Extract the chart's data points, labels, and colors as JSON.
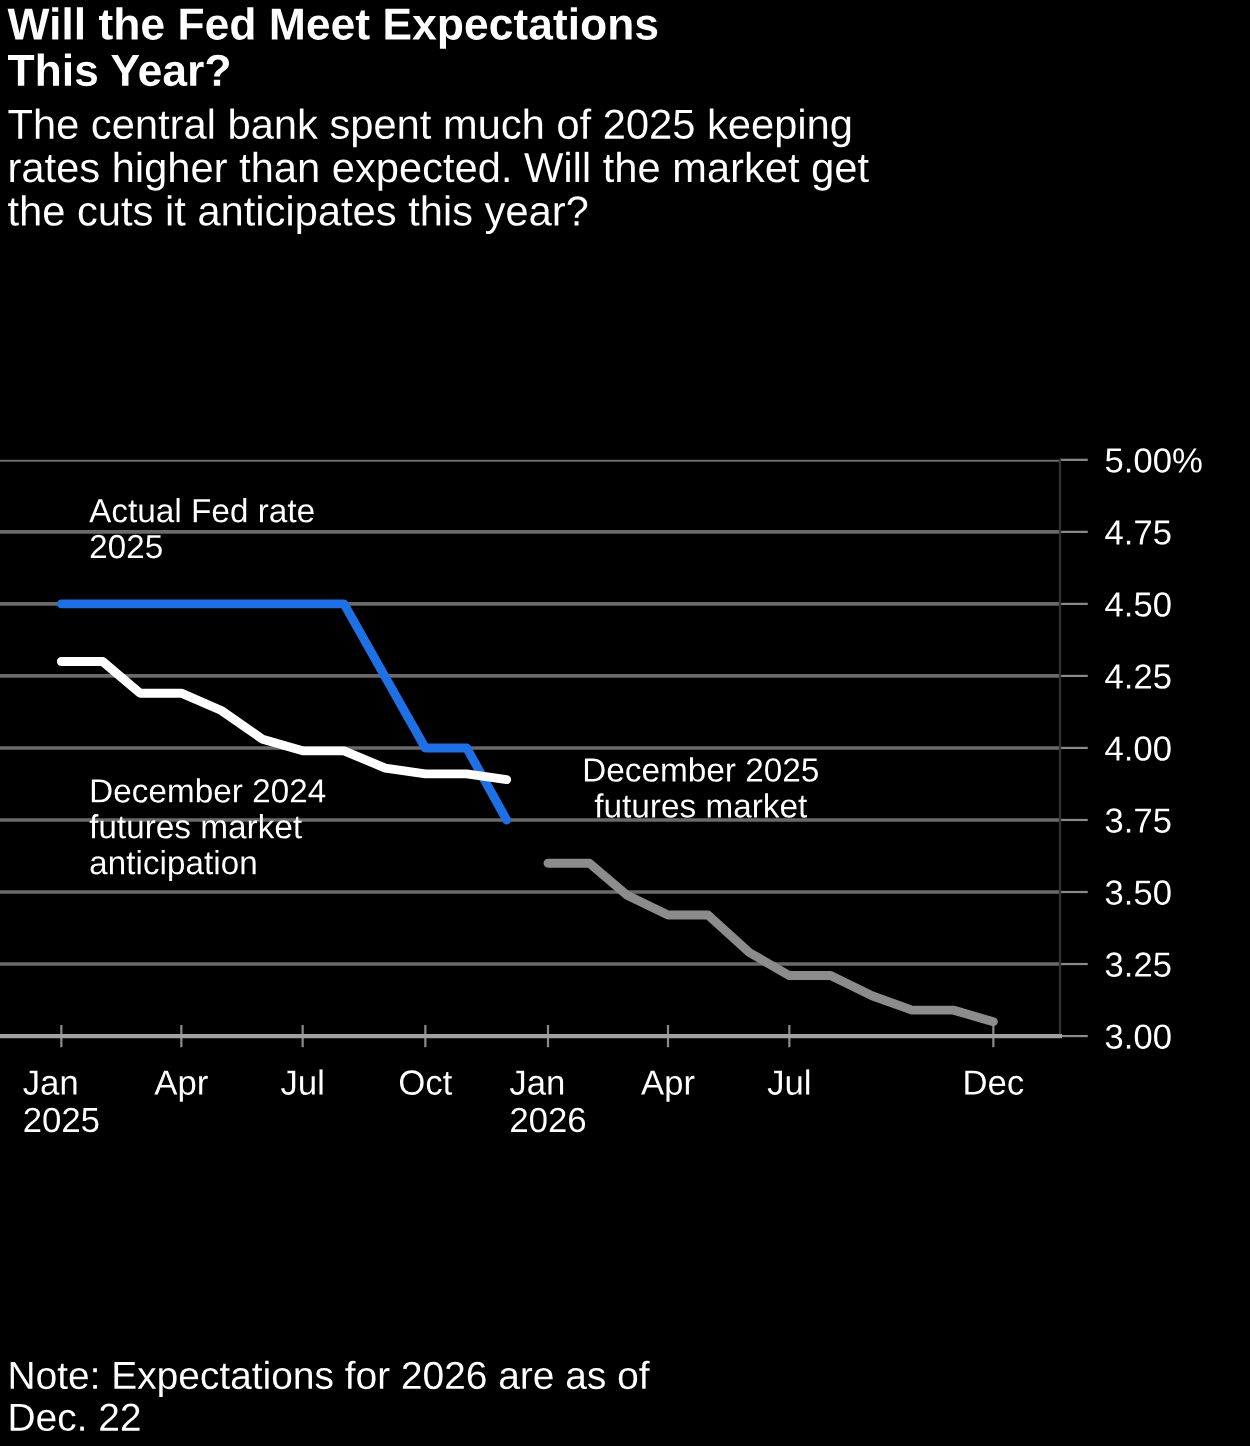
{
  "chart_data": {
    "type": "line",
    "title": "Will the Fed Meet Expectations\nThis Year?",
    "subtitle": "The central bank spent much of 2025 keeping\nrates higher than expected. Will the market get\nthe cuts it anticipates this year?",
    "annotations": [
      "Note: Expectations for 2026 are as of\nDec. 22"
    ],
    "series": [
      {
        "name": "Actual Fed rate\n2025",
        "color": "#1f6fe5",
        "x": [
          "2025-01-01",
          "2025-08-01",
          "2025-10-01",
          "2025-11-01",
          "2025-12-01"
        ],
        "values": [
          4.5,
          4.5,
          4.0,
          4.0,
          3.75
        ]
      },
      {
        "name": "December 2024\nfutures market\nanticipation",
        "color": "#ffffff",
        "x": [
          "2025-01-01",
          "2025-02-01",
          "2025-03-01",
          "2025-04-01",
          "2025-05-01",
          "2025-06-01",
          "2025-07-01",
          "2025-08-01",
          "2025-09-01",
          "2025-10-01",
          "2025-11-01",
          "2025-12-01"
        ],
        "values": [
          4.3,
          4.3,
          4.19,
          4.19,
          4.13,
          4.03,
          3.99,
          3.99,
          3.93,
          3.91,
          3.91,
          3.89
        ]
      },
      {
        "name": "December 2025\nfutures market",
        "color": "#8c8c8c",
        "x": [
          "2026-01-01",
          "2026-02-01",
          "2026-03-01",
          "2026-04-01",
          "2026-05-01",
          "2026-06-01",
          "2026-07-01",
          "2026-08-01",
          "2026-09-01",
          "2026-10-01",
          "2026-11-01",
          "2026-12-01"
        ],
        "values": [
          3.6,
          3.6,
          3.49,
          3.42,
          3.42,
          3.29,
          3.21,
          3.21,
          3.14,
          3.09,
          3.09,
          3.05
        ]
      }
    ],
    "xlim": [
      "2024-11-16",
      "2027-01-20"
    ],
    "xticks": [
      {
        "value": "2025-01-01",
        "label": "Jan\n2025"
      },
      {
        "value": "2025-04-01",
        "label": "Apr"
      },
      {
        "value": "2025-07-01",
        "label": "Jul"
      },
      {
        "value": "2025-10-01",
        "label": "Oct"
      },
      {
        "value": "2026-01-01",
        "label": "Jan\n2026"
      },
      {
        "value": "2026-04-01",
        "label": "Apr"
      },
      {
        "value": "2026-07-01",
        "label": "Jul"
      },
      {
        "value": "2026-12-01",
        "label": "Dec"
      }
    ],
    "ylim": [
      3.0,
      5.0
    ],
    "yticks": [
      {
        "value": 3.0,
        "label": "3.00"
      },
      {
        "value": 3.25,
        "label": "3.25"
      },
      {
        "value": 3.5,
        "label": "3.50"
      },
      {
        "value": 3.75,
        "label": "3.75"
      },
      {
        "value": 4.0,
        "label": "4.00"
      },
      {
        "value": 4.25,
        "label": "4.25"
      },
      {
        "value": 4.5,
        "label": "4.50"
      },
      {
        "value": 4.75,
        "label": "4.75"
      },
      {
        "value": 5.0,
        "label": "5.00%"
      }
    ],
    "grid": "y",
    "legend": false,
    "line_style": "solid",
    "marker": "none"
  }
}
